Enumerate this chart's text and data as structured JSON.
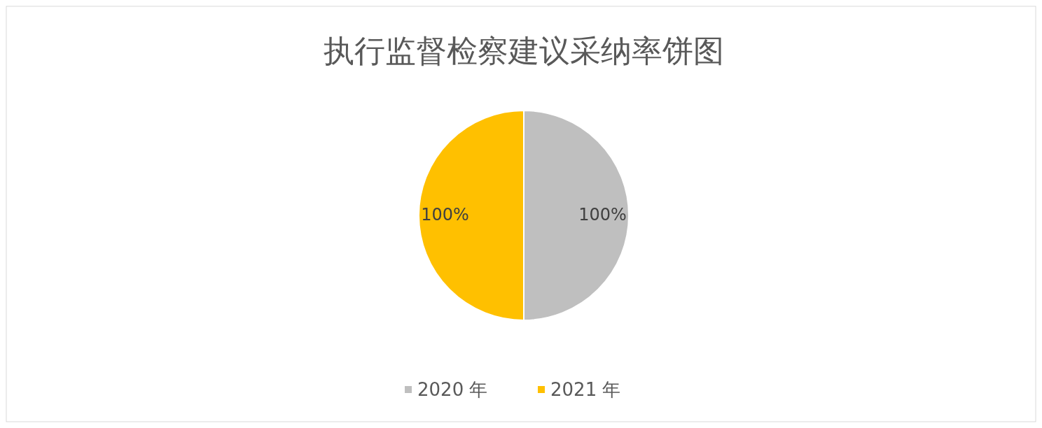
{
  "chart_data": {
    "type": "pie",
    "title": "执行监督检察建议采纳率饼图",
    "categories": [
      "2020 年",
      "2021 年"
    ],
    "values": [
      100,
      100
    ],
    "colors": [
      "#bfbfbf",
      "#ffc000"
    ],
    "value_labels": [
      "100%",
      "100%"
    ],
    "legend": "bottom"
  }
}
